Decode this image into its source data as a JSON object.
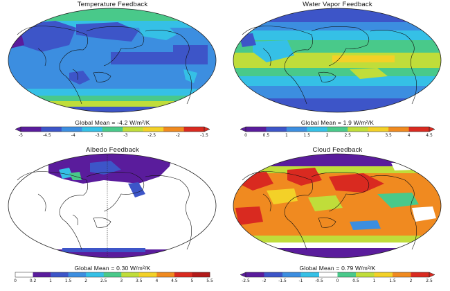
{
  "panels": [
    {
      "title": "Temperature Feedback",
      "global_mean": "Global Mean = -4.2 W/m²/K",
      "colorbar_ticks": [
        "-5",
        "-4.5",
        "-4",
        "-3.5",
        "-3",
        "-2.5",
        "-2",
        "-1.5"
      ],
      "colorbar_colors": [
        "#5a1c9c",
        "#3d55c8",
        "#3c8ee0",
        "#35c0e6",
        "#49c98a",
        "#c0dd3a",
        "#f3d128",
        "#f08a20",
        "#d92a20"
      ],
      "colorbar_style": "both-arrows",
      "map_style": "temperature"
    },
    {
      "title": "Water Vapor Feedback",
      "global_mean": "Global Mean = 1.9 W/m²/K",
      "colorbar_ticks": [
        "0",
        "0.5",
        "1",
        "1.5",
        "2",
        "2.5",
        "3",
        "3.5",
        "4",
        "4.5"
      ],
      "colorbar_colors": [
        "#5a1c9c",
        "#3d55c8",
        "#3c8ee0",
        "#35c0e6",
        "#49c98a",
        "#c0dd3a",
        "#f3d128",
        "#f08a20",
        "#d92a20"
      ],
      "colorbar_style": "both-arrows",
      "map_style": "watervapor"
    },
    {
      "title": "Albedo Feedback",
      "global_mean": "Global Mean = 0.30 W/m²/K",
      "colorbar_ticks": [
        "0",
        "0.2",
        "1",
        "1.5",
        "2",
        "2.5",
        "3",
        "3.5",
        "4",
        "4.5",
        "5",
        "5.5"
      ],
      "colorbar_colors": [
        "#ffffff",
        "#5a1c9c",
        "#3d55c8",
        "#3c8ee0",
        "#35c0e6",
        "#49c98a",
        "#c0dd3a",
        "#f3d128",
        "#f08a20",
        "#d92a20",
        "#b21a1a"
      ],
      "colorbar_style": "boxed",
      "map_style": "albedo"
    },
    {
      "title": "Cloud Feedback",
      "global_mean": "Global Mean = 0.79 W/m²/K",
      "colorbar_ticks": [
        "-2.5",
        "-2",
        "-1.5",
        "-1",
        "-0.5",
        "0",
        "0.5",
        "1",
        "1.5",
        "2",
        "2.5"
      ],
      "colorbar_colors": [
        "#5a1c9c",
        "#3d55c8",
        "#3c8ee0",
        "#35c0e6",
        "#ffffff",
        "#49c98a",
        "#c0dd3a",
        "#f3d128",
        "#f08a20",
        "#d92a20"
      ],
      "colorbar_style": "both-arrows",
      "map_style": "cloud"
    }
  ]
}
